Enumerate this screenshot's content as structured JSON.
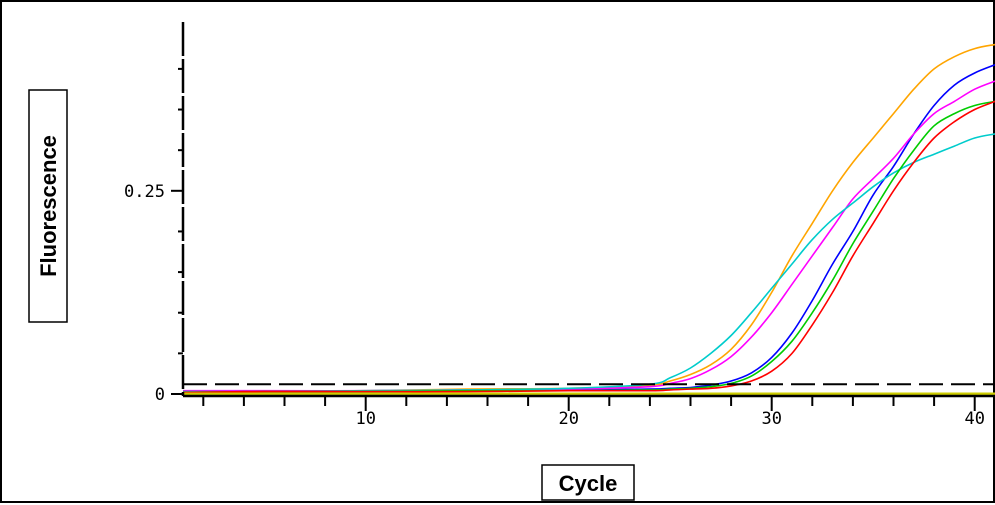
{
  "chart_data": {
    "type": "line",
    "xlabel": "Cycle",
    "ylabel": "Fluorescence",
    "xlim": [
      1,
      41
    ],
    "ylim": [
      0,
      0.47
    ],
    "x_ticks": [
      10,
      20,
      30,
      40
    ],
    "x_tick_labels": [
      "10",
      "20",
      "30",
      "40"
    ],
    "y_ticks": [
      0,
      0.25
    ],
    "y_tick_labels": [
      "0",
      "0.25"
    ],
    "threshold": 0.012,
    "grid": false,
    "series": [
      {
        "color": "#ffa500",
        "x": [
          1,
          5,
          10,
          15,
          20,
          24,
          25,
          26,
          27,
          28,
          29,
          30,
          31,
          32,
          33,
          34,
          35,
          36,
          37,
          38,
          39,
          40,
          41
        ],
        "y": [
          0.002,
          0.003,
          0.004,
          0.006,
          0.007,
          0.011,
          0.016,
          0.024,
          0.036,
          0.055,
          0.085,
          0.125,
          0.17,
          0.21,
          0.25,
          0.285,
          0.315,
          0.345,
          0.375,
          0.4,
          0.415,
          0.425,
          0.43
        ]
      },
      {
        "color": "#0000ff",
        "x": [
          1,
          5,
          10,
          15,
          20,
          24,
          25,
          26,
          27,
          28,
          29,
          30,
          31,
          32,
          33,
          34,
          35,
          36,
          37,
          38,
          39,
          40,
          41
        ],
        "y": [
          0.002,
          0.003,
          0.003,
          0.004,
          0.005,
          0.006,
          0.007,
          0.008,
          0.011,
          0.016,
          0.026,
          0.045,
          0.075,
          0.115,
          0.16,
          0.2,
          0.245,
          0.28,
          0.32,
          0.355,
          0.38,
          0.395,
          0.405
        ]
      },
      {
        "color": "#ff00ff",
        "x": [
          1,
          5,
          10,
          15,
          20,
          24,
          25,
          26,
          27,
          28,
          29,
          30,
          31,
          32,
          33,
          34,
          35,
          36,
          37,
          38,
          39,
          40,
          41
        ],
        "y": [
          0.004,
          0.004,
          0.004,
          0.005,
          0.006,
          0.009,
          0.013,
          0.019,
          0.03,
          0.046,
          0.07,
          0.1,
          0.135,
          0.17,
          0.205,
          0.24,
          0.265,
          0.29,
          0.32,
          0.345,
          0.36,
          0.375,
          0.385
        ]
      },
      {
        "color": "#00cccc",
        "x": [
          1,
          5,
          10,
          15,
          20,
          24,
          25,
          26,
          27,
          28,
          29,
          30,
          31,
          32,
          33,
          34,
          35,
          36,
          37,
          38,
          39,
          40,
          41
        ],
        "y": [
          0.003,
          0.003,
          0.004,
          0.005,
          0.007,
          0.012,
          0.02,
          0.032,
          0.05,
          0.072,
          0.1,
          0.13,
          0.16,
          0.19,
          0.215,
          0.235,
          0.255,
          0.272,
          0.285,
          0.295,
          0.305,
          0.315,
          0.32
        ]
      },
      {
        "color": "#00cc00",
        "x": [
          1,
          5,
          10,
          15,
          20,
          24,
          25,
          26,
          27,
          28,
          29,
          30,
          31,
          32,
          33,
          34,
          35,
          36,
          37,
          38,
          39,
          40,
          41
        ],
        "y": [
          0.002,
          0.003,
          0.003,
          0.004,
          0.004,
          0.005,
          0.006,
          0.007,
          0.009,
          0.013,
          0.022,
          0.04,
          0.065,
          0.1,
          0.14,
          0.185,
          0.225,
          0.265,
          0.3,
          0.33,
          0.345,
          0.355,
          0.36
        ]
      },
      {
        "color": "#ff0000",
        "x": [
          1,
          5,
          10,
          15,
          20,
          24,
          25,
          26,
          27,
          28,
          29,
          30,
          31,
          32,
          33,
          34,
          35,
          36,
          37,
          38,
          39,
          40,
          41
        ],
        "y": [
          0.002,
          0.003,
          0.003,
          0.003,
          0.004,
          0.004,
          0.005,
          0.006,
          0.007,
          0.01,
          0.016,
          0.028,
          0.05,
          0.085,
          0.125,
          0.17,
          0.21,
          0.25,
          0.285,
          0.315,
          0.335,
          0.35,
          0.36
        ]
      },
      {
        "color": "#cccc00",
        "x": [
          1,
          41
        ],
        "y": [
          0.0,
          0.0
        ]
      }
    ]
  }
}
